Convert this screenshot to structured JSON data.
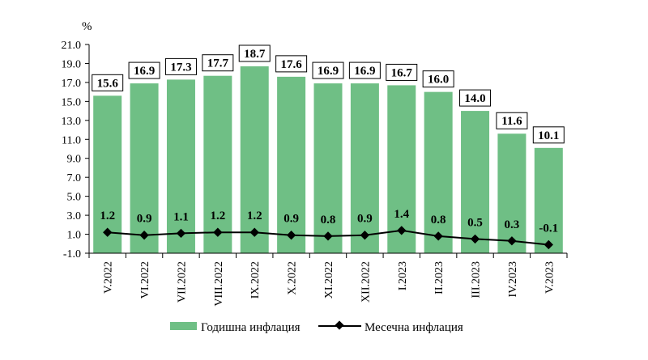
{
  "chart_data": {
    "type": "bar+line",
    "y_unit": "%",
    "ylim": [
      -1.0,
      21.0
    ],
    "yticks": [
      "21.0",
      "19.0",
      "17.0",
      "15.0",
      "13.0",
      "11.0",
      "9.0",
      "7.0",
      "5.0",
      "3.0",
      "1.0",
      "-1.0"
    ],
    "categories": [
      "V.2022",
      "VI.2022",
      "VII.2022",
      "VIII.2022",
      "IX.2022",
      "X.2022",
      "XI.2022",
      "XII.2022",
      "I.2023",
      "II.2023",
      "III.2023",
      "IV.2023",
      "V.2023"
    ],
    "series": [
      {
        "name": "Годишна инфлация",
        "type": "bar",
        "color": "#6fbf85",
        "values": [
          15.6,
          16.9,
          17.3,
          17.7,
          18.7,
          17.6,
          16.9,
          16.9,
          16.7,
          16.0,
          14.0,
          11.6,
          10.1
        ],
        "labels": [
          "15.6",
          "16.9",
          "17.3",
          "17.7",
          "18.7",
          "17.6",
          "16.9",
          "16.9",
          "16.7",
          "16.0",
          "14.0",
          "11.6",
          "10.1"
        ]
      },
      {
        "name": "Месечна инфлация",
        "type": "line",
        "color": "#000000",
        "values": [
          1.2,
          0.9,
          1.1,
          1.2,
          1.2,
          0.9,
          0.8,
          0.9,
          1.4,
          0.8,
          0.5,
          0.3,
          -0.1
        ],
        "labels": [
          "1.2",
          "0.9",
          "1.1",
          "1.2",
          "1.2",
          "0.9",
          "0.8",
          "0.9",
          "1.4",
          "0.8",
          "0.5",
          "0.3",
          "-0.1"
        ]
      }
    ],
    "legend_position": "bottom"
  }
}
